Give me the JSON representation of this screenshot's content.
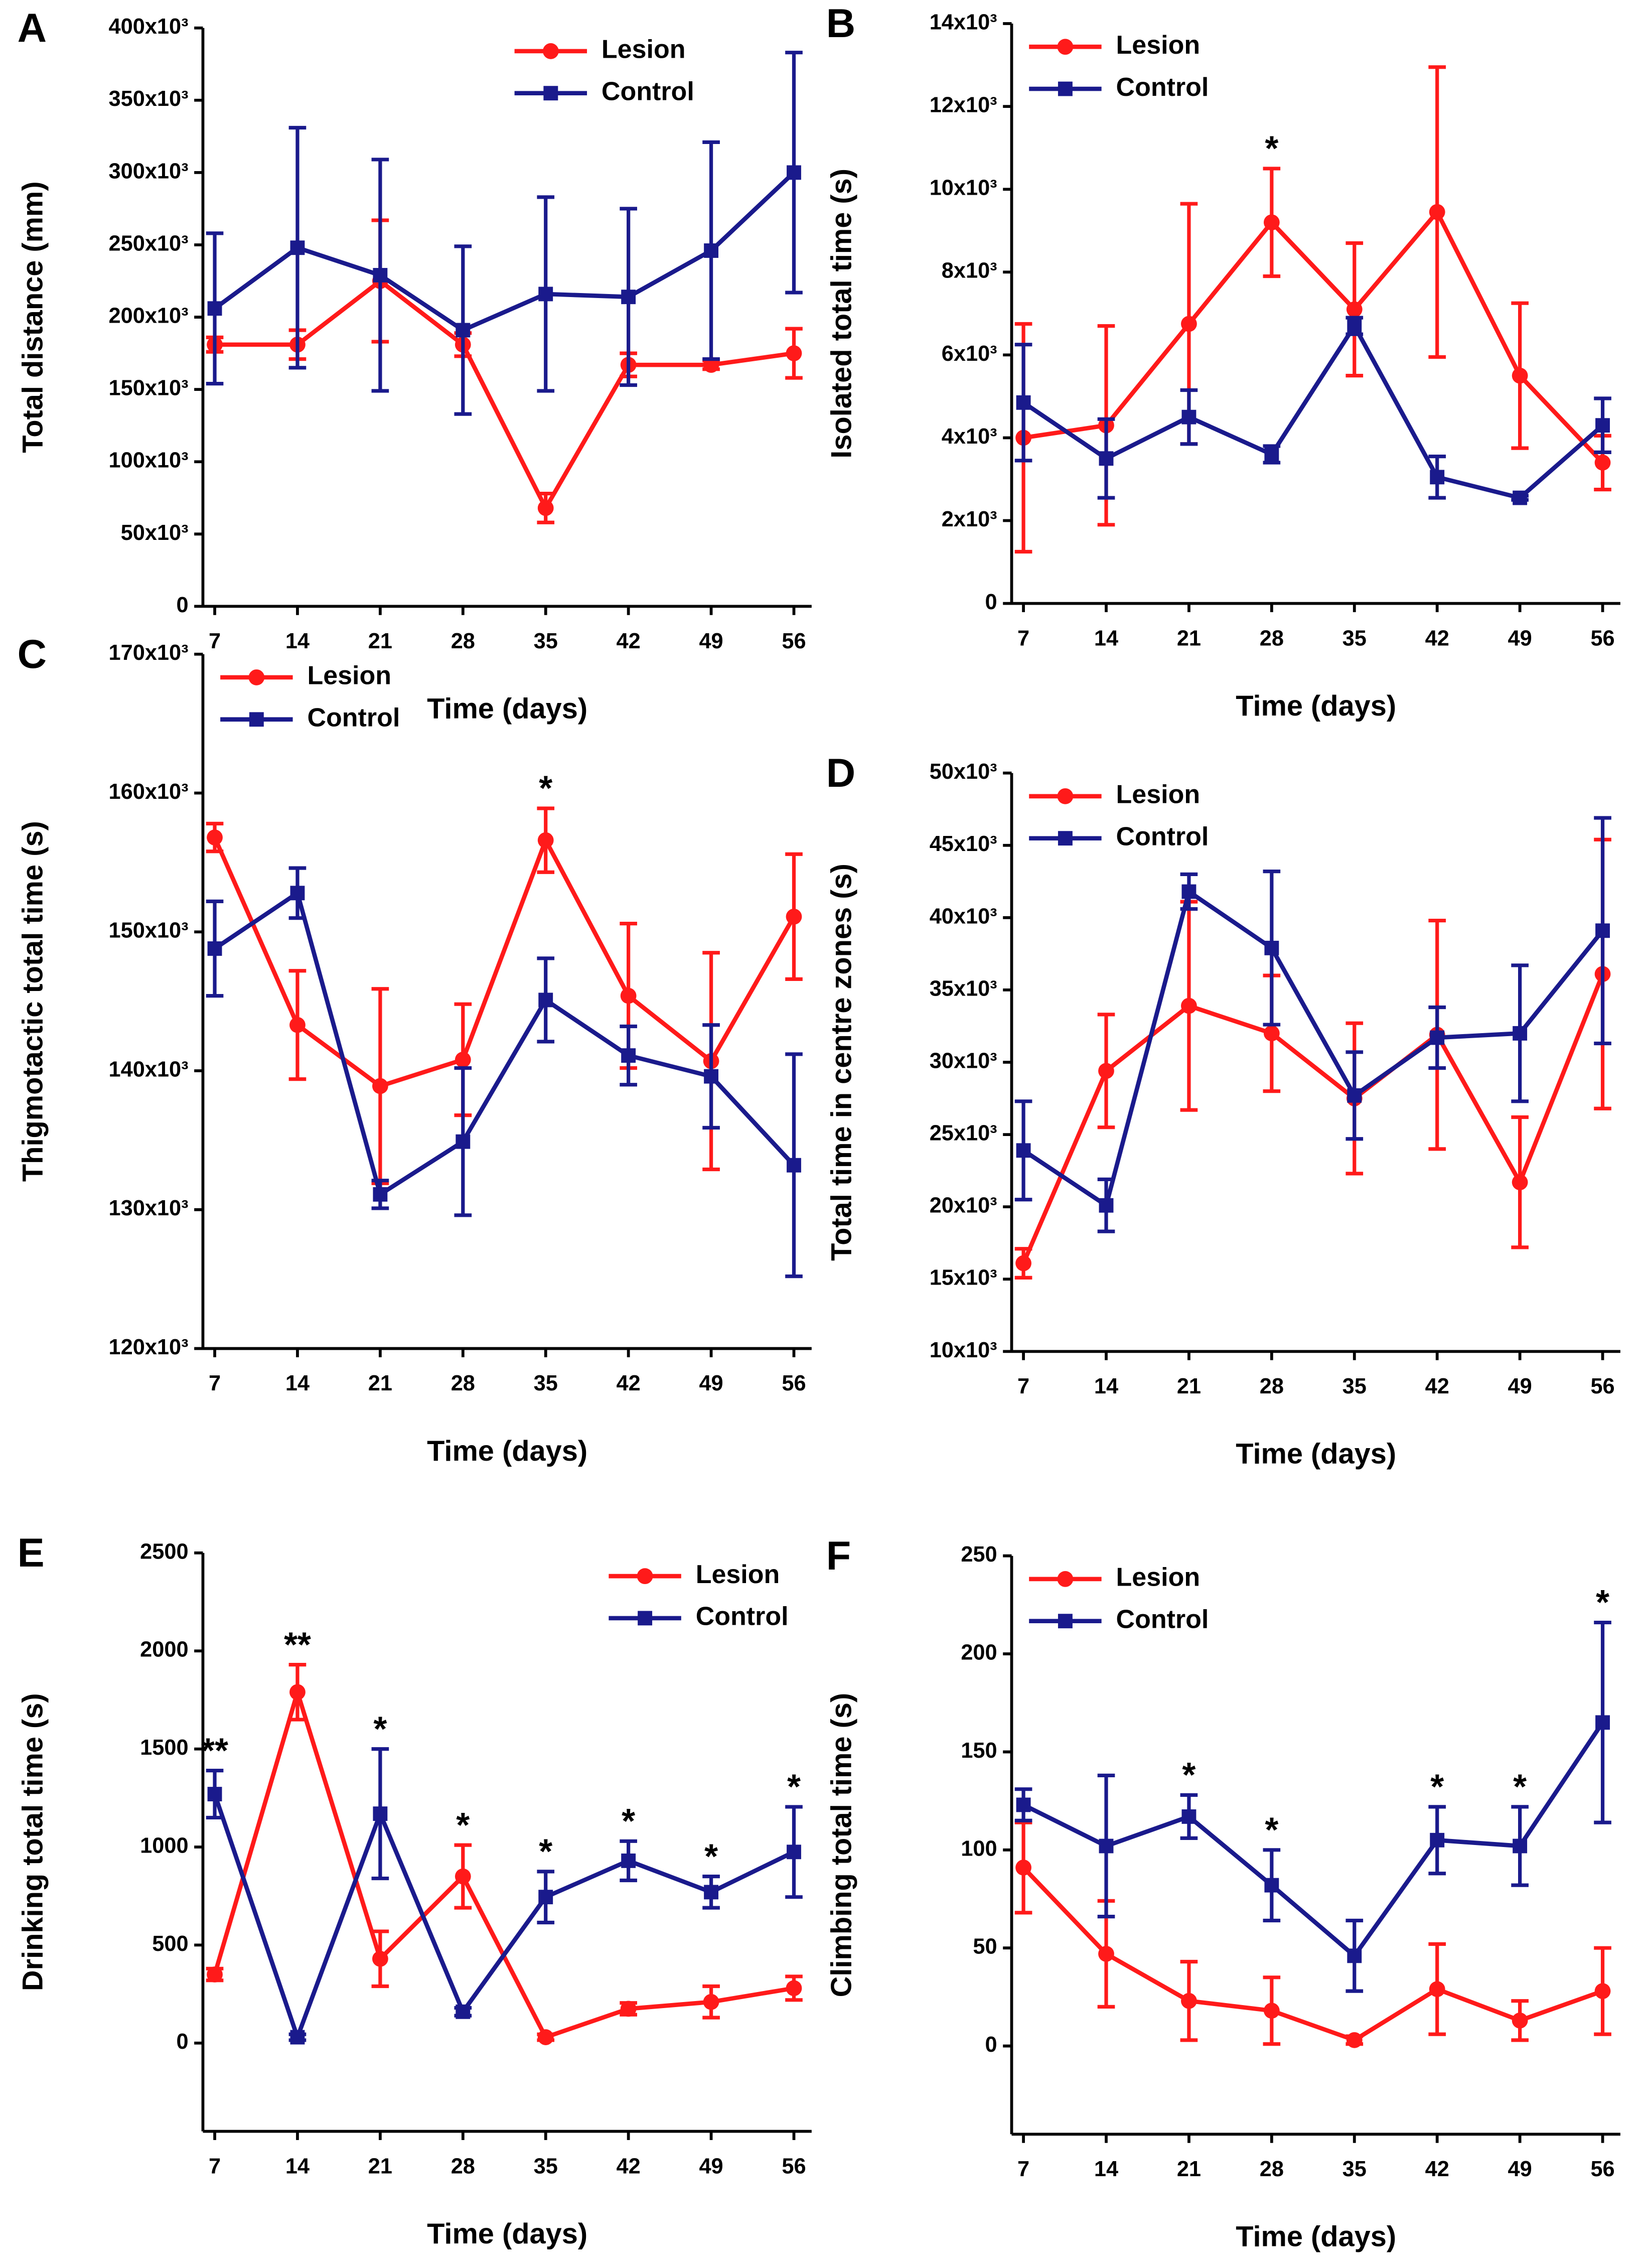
{
  "chart_data": [
    {
      "type": "line",
      "label": "A",
      "xlabel": "Time (days)",
      "ylabel": "Total distance (mm)",
      "legend": "top-center",
      "x": [
        7,
        14,
        21,
        28,
        35,
        42,
        49,
        56
      ],
      "xlim": [
        6,
        57.5
      ],
      "xticks": [
        7,
        14,
        21,
        28,
        35,
        42,
        49,
        56
      ],
      "ylim": [
        0,
        400000
      ],
      "yticks": [
        0,
        {
          "value": 50000,
          "label": "50x10³"
        },
        {
          "value": 100000,
          "label": "100x10³"
        },
        {
          "value": 150000,
          "label": "150x10³"
        },
        {
          "value": 200000,
          "label": "200x10³"
        },
        {
          "value": 250000,
          "label": "250x10³"
        },
        {
          "value": 300000,
          "label": "300x10³"
        },
        {
          "value": 350000,
          "label": "350x10³"
        },
        {
          "value": 400000,
          "label": "400x10³"
        }
      ],
      "series": [
        {
          "name": "Lesion",
          "color": "#ff1a1a",
          "marker": "circle",
          "values": [
            181000,
            181000,
            225000,
            181000,
            68000,
            167000,
            167000,
            175000
          ],
          "errors": [
            5000,
            10000,
            42000,
            8000,
            10000,
            8000,
            3000,
            17000
          ]
        },
        {
          "name": "Control",
          "color": "#1a1a8c",
          "marker": "square",
          "values": [
            206000,
            248000,
            229000,
            191000,
            216000,
            214000,
            246000,
            300000
          ],
          "errors": [
            52000,
            83000,
            80000,
            58000,
            67000,
            61000,
            75000,
            83000
          ]
        }
      ],
      "annotations": []
    },
    {
      "type": "line",
      "label": "B",
      "xlabel": "Time (days)",
      "ylabel": "Isolated total time (s)",
      "legend": "top-left",
      "x": [
        7,
        14,
        21,
        28,
        35,
        42,
        49,
        56
      ],
      "xlim": [
        6,
        57.5
      ],
      "xticks": [
        7,
        14,
        21,
        28,
        35,
        42,
        49,
        56
      ],
      "ylim": [
        0,
        14000
      ],
      "yticks": [
        0,
        {
          "value": 2000,
          "label": "2x10³"
        },
        {
          "value": 4000,
          "label": "4x10³"
        },
        {
          "value": 6000,
          "label": "6x10³"
        },
        {
          "value": 8000,
          "label": "8x10³"
        },
        {
          "value": 10000,
          "label": "10x10³"
        },
        {
          "value": 12000,
          "label": "12x10³"
        },
        {
          "value": 14000,
          "label": "14x10³"
        }
      ],
      "series": [
        {
          "name": "Lesion",
          "color": "#ff1a1a",
          "marker": "circle",
          "values": [
            4000,
            4300,
            6750,
            9200,
            7100,
            9450,
            5500,
            3400
          ],
          "errors": [
            2750,
            2400,
            2900,
            1300,
            1600,
            3500,
            1750,
            650
          ]
        },
        {
          "name": "Control",
          "color": "#1a1a8c",
          "marker": "square",
          "values": [
            4850,
            3500,
            4500,
            3600,
            6700,
            3050,
            2550,
            4300
          ],
          "errors": [
            1400,
            950,
            650,
            200,
            200,
            500,
            50,
            650
          ]
        }
      ],
      "annotations": [
        {
          "label": "*",
          "x": 28
        }
      ]
    },
    {
      "type": "line",
      "label": "C",
      "xlabel": "Time (days)",
      "ylabel": "Thigmotactic total time (s)",
      "legend": "top-left",
      "x": [
        7,
        14,
        21,
        28,
        35,
        42,
        49,
        56
      ],
      "xlim": [
        6,
        57.5
      ],
      "xticks": [
        7,
        14,
        21,
        28,
        35,
        42,
        49,
        56
      ],
      "ylim": [
        120000,
        170000
      ],
      "yticks": [
        {
          "value": 120000,
          "label": "120x10³"
        },
        {
          "value": 130000,
          "label": "130x10³"
        },
        {
          "value": 140000,
          "label": "140x10³"
        },
        {
          "value": 150000,
          "label": "150x10³"
        },
        {
          "value": 160000,
          "label": "160x10³"
        },
        {
          "value": 170000,
          "label": "170x10³"
        }
      ],
      "series": [
        {
          "name": "Lesion",
          "color": "#ff1a1a",
          "marker": "circle",
          "values": [
            156800,
            143300,
            138900,
            140800,
            156600,
            145400,
            140700,
            151100
          ],
          "errors": [
            1000,
            3900,
            7000,
            4000,
            2300,
            5200,
            7800,
            4500
          ]
        },
        {
          "name": "Control",
          "color": "#1a1a8c",
          "marker": "square",
          "values": [
            148800,
            152800,
            131100,
            134900,
            145100,
            141100,
            139600,
            133200
          ],
          "errors": [
            3400,
            1800,
            1000,
            5300,
            3000,
            2100,
            3700,
            8000
          ]
        }
      ],
      "annotations": [
        {
          "label": "*",
          "x": 35
        }
      ]
    },
    {
      "type": "line",
      "label": "D",
      "xlabel": "Time (days)",
      "ylabel": "Total time in centre zones (s)",
      "legend": "top-left",
      "x": [
        7,
        14,
        21,
        28,
        35,
        42,
        49,
        56
      ],
      "xlim": [
        6,
        57.5
      ],
      "xticks": [
        7,
        14,
        21,
        28,
        35,
        42,
        49,
        56
      ],
      "ylim": [
        10000,
        50000
      ],
      "yticks": [
        {
          "value": 10000,
          "label": "10x10³"
        },
        {
          "value": 15000,
          "label": "15x10³"
        },
        {
          "value": 20000,
          "label": "20x10³"
        },
        {
          "value": 25000,
          "label": "25x10³"
        },
        {
          "value": 30000,
          "label": "30x10³"
        },
        {
          "value": 35000,
          "label": "35x10³"
        },
        {
          "value": 40000,
          "label": "40x10³"
        },
        {
          "value": 45000,
          "label": "45x10³"
        },
        {
          "value": 50000,
          "label": "50x10³"
        }
      ],
      "series": [
        {
          "name": "Lesion",
          "color": "#ff1a1a",
          "marker": "circle",
          "values": [
            16100,
            29400,
            33900,
            32000,
            27500,
            31900,
            21700,
            36100
          ],
          "errors": [
            1000,
            3900,
            7200,
            4000,
            5200,
            7900,
            4500,
            9300
          ]
        },
        {
          "name": "Control",
          "color": "#1a1a8c",
          "marker": "square",
          "values": [
            23900,
            20100,
            41800,
            37900,
            27700,
            31700,
            32000,
            39100
          ],
          "errors": [
            3400,
            1800,
            1200,
            5300,
            3000,
            2100,
            4700,
            7800
          ]
        }
      ],
      "annotations": []
    },
    {
      "type": "line",
      "label": "E",
      "xlabel": "Time (days)",
      "ylabel": "Drinking total time (s)",
      "legend": "top-right",
      "x": [
        7,
        14,
        21,
        28,
        35,
        42,
        49,
        56
      ],
      "xlim": [
        6,
        57.5
      ],
      "xticks": [
        7,
        14,
        21,
        28,
        35,
        42,
        49,
        56
      ],
      "ylim": [
        -450,
        2500
      ],
      "yticks": [
        0,
        500,
        1000,
        1500,
        2000,
        2500
      ],
      "series": [
        {
          "name": "Lesion",
          "color": "#ff1a1a",
          "marker": "circle",
          "values": [
            350,
            1790,
            430,
            850,
            30,
            175,
            210,
            280
          ],
          "errors": [
            30,
            140,
            140,
            160,
            15,
            30,
            80,
            60
          ]
        },
        {
          "name": "Control",
          "color": "#1a1a8c",
          "marker": "square",
          "values": [
            1270,
            30,
            1170,
            160,
            745,
            930,
            770,
            975
          ],
          "errors": [
            120,
            15,
            330,
            20,
            130,
            100,
            80,
            230
          ]
        }
      ],
      "annotations": [
        {
          "label": "**",
          "x": 7
        },
        {
          "label": "**",
          "x": 14
        },
        {
          "label": "*",
          "x": 21
        },
        {
          "label": "*",
          "x": 28
        },
        {
          "label": "*",
          "x": 35
        },
        {
          "label": "*",
          "x": 42
        },
        {
          "label": "*",
          "x": 49
        },
        {
          "label": "*",
          "x": 56
        }
      ]
    },
    {
      "type": "line",
      "label": "F",
      "xlabel": "Time (days)",
      "ylabel": "Climbing total time (s)",
      "legend": "top-left",
      "x": [
        7,
        14,
        21,
        28,
        35,
        42,
        49,
        56
      ],
      "xlim": [
        6,
        57.5
      ],
      "xticks": [
        7,
        14,
        21,
        28,
        35,
        42,
        49,
        56
      ],
      "ylim": [
        -45,
        250
      ],
      "yticks": [
        0,
        50,
        100,
        150,
        200,
        250
      ],
      "series": [
        {
          "name": "Lesion",
          "color": "#ff1a1a",
          "marker": "circle",
          "values": [
            91,
            47,
            23,
            18,
            3,
            29,
            13,
            28
          ],
          "errors": [
            23,
            27,
            20,
            17,
            2,
            23,
            10,
            22
          ]
        },
        {
          "name": "Control",
          "color": "#1a1a8c",
          "marker": "square",
          "values": [
            123,
            102,
            117,
            82,
            46,
            105,
            102,
            165
          ],
          "errors": [
            8,
            36,
            11,
            18,
            18,
            17,
            20,
            51
          ]
        }
      ],
      "annotations": [
        {
          "label": "*",
          "x": 21
        },
        {
          "label": "*",
          "x": 28
        },
        {
          "label": "*",
          "x": 42
        },
        {
          "label": "*",
          "x": 49
        },
        {
          "label": "*",
          "x": 56
        }
      ]
    }
  ]
}
